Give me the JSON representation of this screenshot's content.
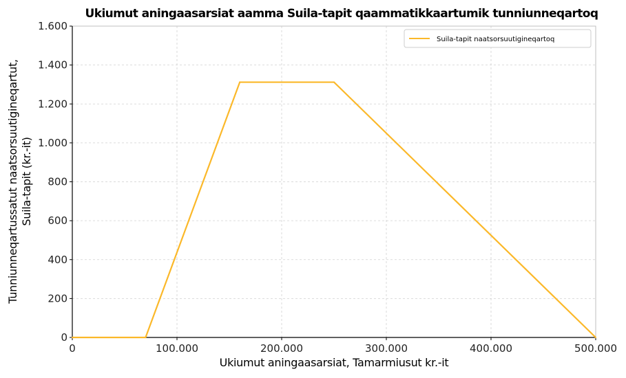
{
  "chart_data": {
    "type": "line",
    "title": "Ukiumut aningaasarsiat aamma Suila-tapit qaammatikkaartumik tunniunneqartoq",
    "xlabel": "Ukiumut aningaasarsiat, Tamarmiusut kr.-it",
    "ylabel_lines": [
      "Tunniunneqartussatut naatsorsuutigineqartut,",
      "Suila-tapit (kr.-it)"
    ],
    "xlim": [
      0,
      500000
    ],
    "ylim": [
      0,
      1600
    ],
    "xticks": [
      0,
      100000,
      200000,
      300000,
      400000,
      500000
    ],
    "xtick_labels": [
      "0",
      "100.000",
      "200.000",
      "300.000",
      "400.000",
      "500.000"
    ],
    "yticks": [
      0,
      200,
      400,
      600,
      800,
      1000,
      1200,
      1400,
      1600
    ],
    "ytick_labels": [
      "0",
      "200",
      "400",
      "600",
      "800",
      "1.000",
      "1.200",
      "1.400",
      "1.600"
    ],
    "grid": true,
    "legend_position": "top-right",
    "series": [
      {
        "name": "Suila-tapit naatsorsuutigineqartoq",
        "color": "#fbb829",
        "x": [
          0,
          70000,
          160000,
          250000,
          500000
        ],
        "y": [
          0,
          0,
          1312,
          1312,
          0
        ]
      }
    ]
  }
}
